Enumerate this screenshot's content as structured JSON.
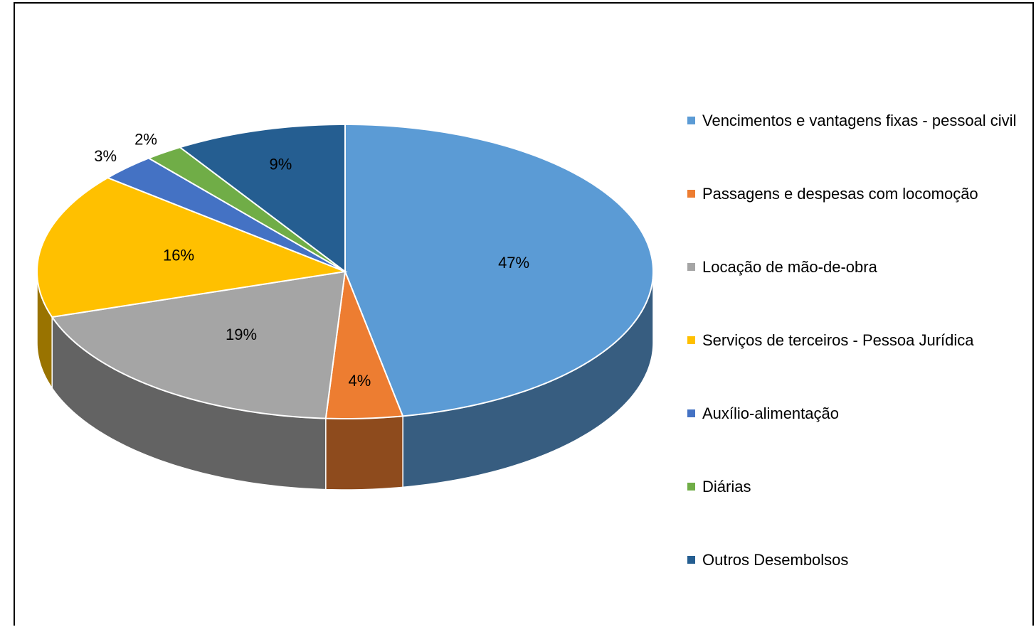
{
  "chart_data": {
    "type": "pie3d",
    "categories": [
      "Vencimentos e vantagens fixas - pessoal civil",
      "Passagens e despesas com locomoção",
      "Locação de mão-de-obra",
      "Serviços de terceiros - Pessoa Jurídica",
      "Auxílio-alimentação",
      "Diárias",
      "Outros Desembolsos"
    ],
    "values": [
      47,
      4,
      19,
      16,
      3,
      2,
      9
    ],
    "value_labels": [
      "47%",
      "4%",
      "19%",
      "16%",
      "3%",
      "2%",
      "9%"
    ],
    "colors": [
      "#5b9bd5",
      "#ed7d31",
      "#a5a5a5",
      "#ffc000",
      "#4472c4",
      "#70ad47",
      "#255e91"
    ],
    "legend": "right"
  }
}
